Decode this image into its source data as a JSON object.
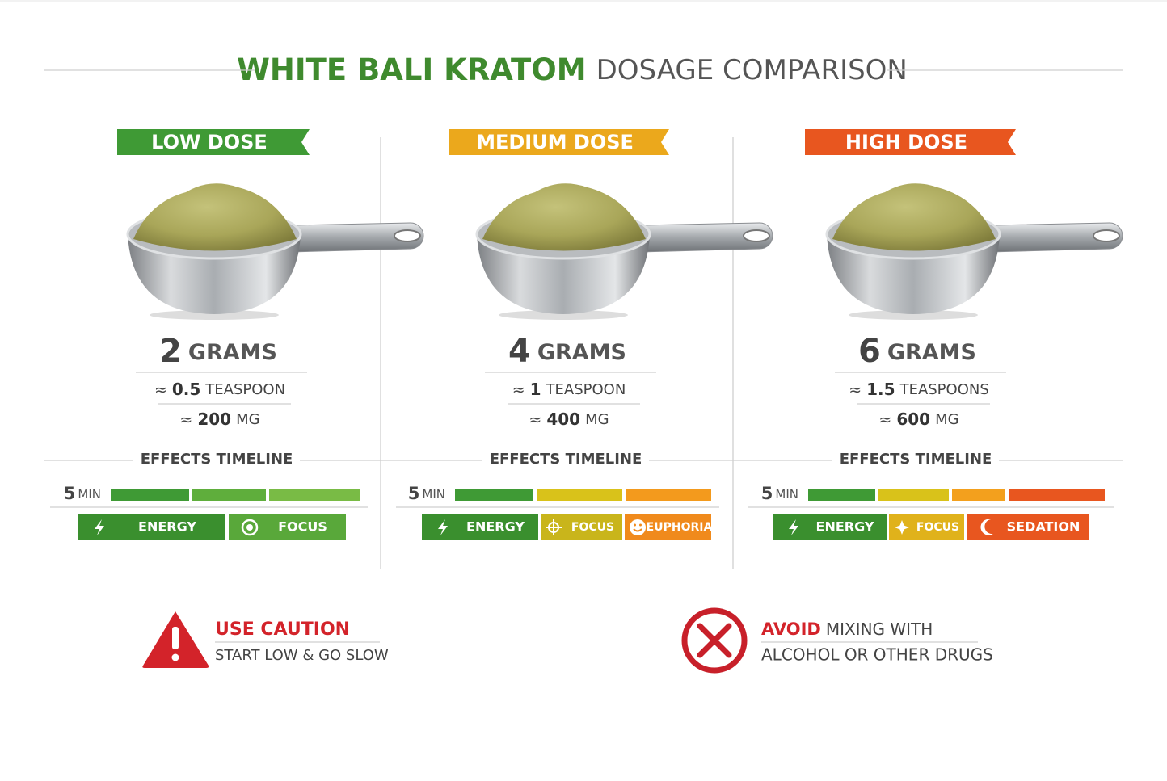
{
  "header": {
    "title_highlight": "WHITE BALI KRATOM",
    "title_rest": "DOSAGE COMPARISON"
  },
  "approx_symbol": "≈",
  "doses": [
    {
      "label": "LOW DOSE",
      "amount": "2",
      "unit": "GRAMS",
      "teaspoon_amount": "0.5",
      "teaspoon_unit": "TEASPOON",
      "mg_amount": "200",
      "mg_unit": "MG",
      "timeline_title": "EFFECTS TIMELINE",
      "onset_amount": "5",
      "onset_unit": "MIN",
      "effects": [
        "ENERGY",
        "FOCUS"
      ]
    },
    {
      "label": "MEDIUM DOSE",
      "amount": "4",
      "unit": "GRAMS",
      "teaspoon_amount": "1",
      "teaspoon_unit": "TEASPOON",
      "mg_amount": "400",
      "mg_unit": "MG",
      "timeline_title": "EFFECTS TIMELINE",
      "onset_amount": "5",
      "onset_unit": "MIN",
      "effects": [
        "ENERGY",
        "FOCUS",
        "EUPHORIA"
      ]
    },
    {
      "label": "HIGH DOSE",
      "amount": "6",
      "unit": "GRAMS",
      "teaspoon_amount": "1.5",
      "teaspoon_unit": "TEASPOONS",
      "mg_amount": "600",
      "mg_unit": "MG",
      "timeline_title": "EFFECTS TIMELINE",
      "onset_amount": "5",
      "onset_unit": "MIN",
      "effects": [
        "ENERGY",
        "FOCUS",
        "SEDATION"
      ]
    }
  ],
  "warnings": {
    "caution": {
      "title": "USE CAUTION",
      "text": "START LOW & GO SLOW"
    },
    "avoid": {
      "title_highlight": "AVOID",
      "title_rest": "MIXING WITH",
      "text": "ALCOHOL OR OTHER DRUGS"
    }
  }
}
